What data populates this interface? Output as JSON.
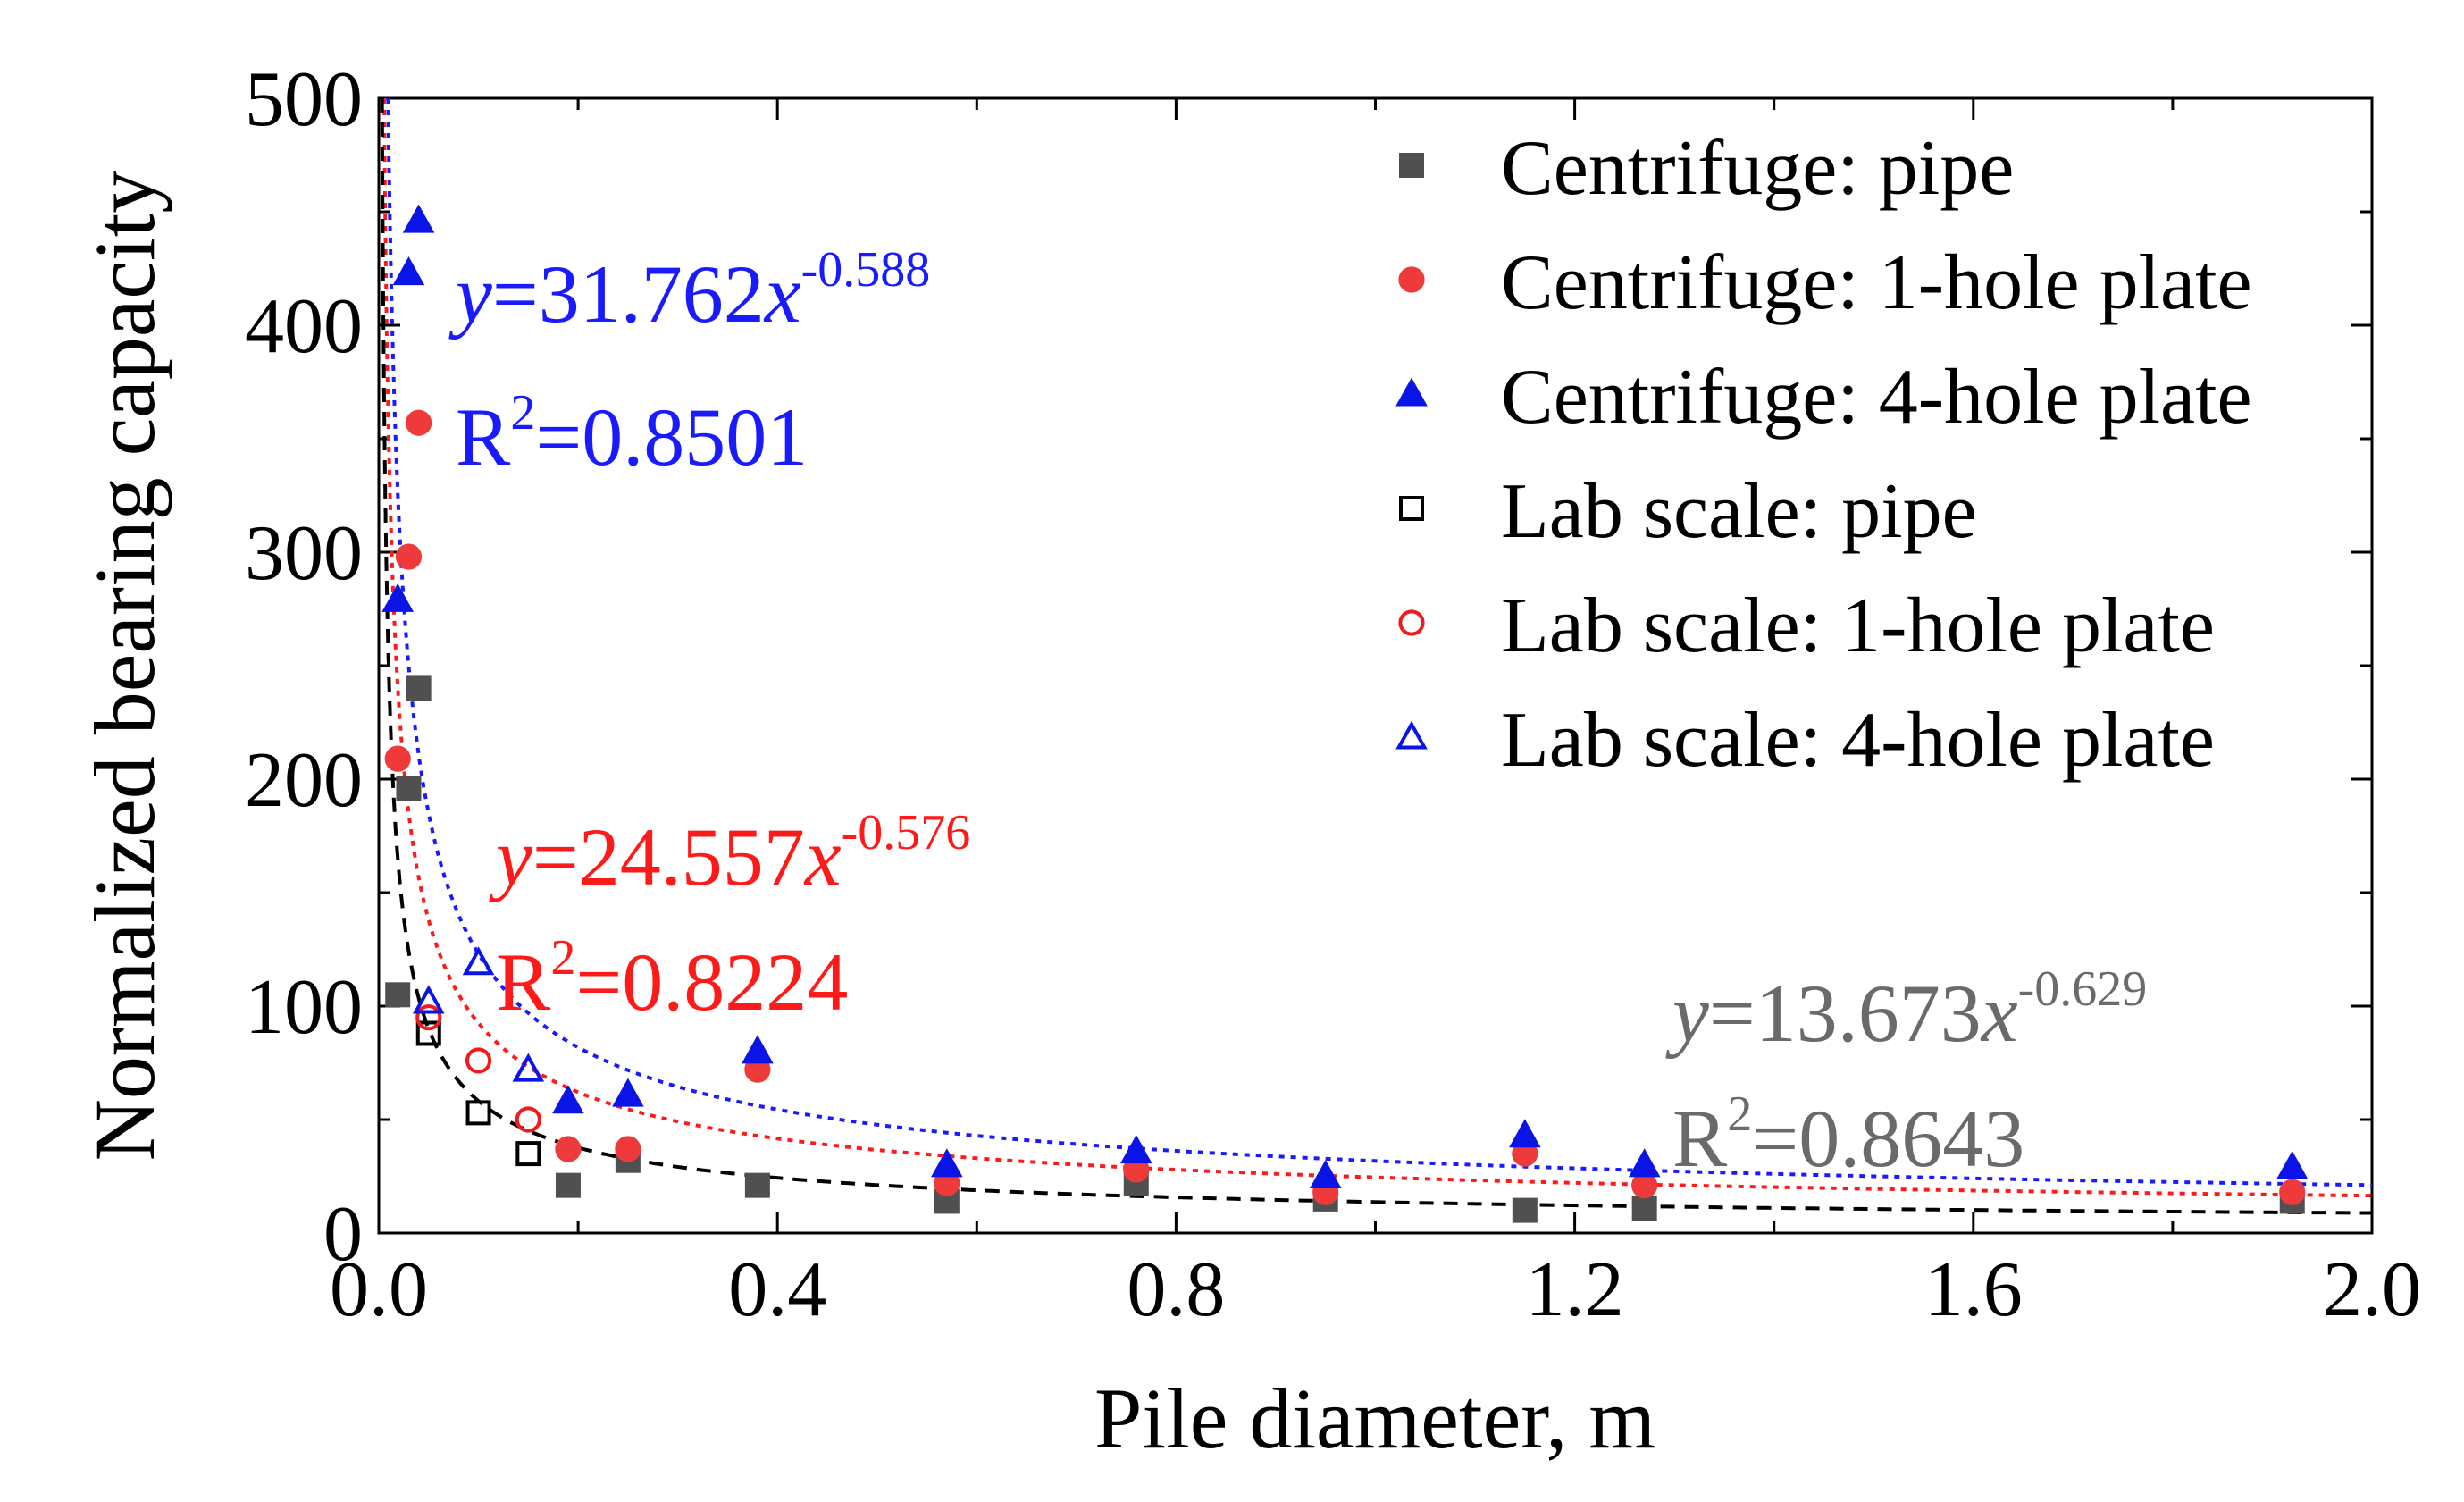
{
  "chart_data": {
    "type": "scatter",
    "xlabel": "Pile diameter, m",
    "ylabel": "Normalized bearing capacity",
    "xlim": [
      0.0,
      2.0
    ],
    "ylim": [
      0,
      500
    ],
    "xticks": [
      0.0,
      0.4,
      0.8,
      1.2,
      1.6,
      2.0
    ],
    "xtick_labels": [
      "0.0",
      "0.4",
      "0.8",
      "1.2",
      "1.6",
      "2.0"
    ],
    "yticks": [
      0,
      100,
      200,
      300,
      400,
      500
    ],
    "ytick_labels": [
      "0",
      "100",
      "200",
      "300",
      "400",
      "500"
    ],
    "grid": false,
    "legend_position": "top-right",
    "series": [
      {
        "name": "Centrifuge: pipe",
        "marker": "square",
        "filled": true,
        "color": "#505050",
        "points": [
          [
            0.019,
            105
          ],
          [
            0.03,
            196
          ],
          [
            0.04,
            240
          ],
          [
            0.19,
            21
          ],
          [
            0.25,
            32
          ],
          [
            0.38,
            21
          ],
          [
            0.57,
            14
          ],
          [
            0.76,
            22
          ],
          [
            0.95,
            15
          ],
          [
            1.15,
            10
          ],
          [
            1.27,
            11
          ],
          [
            1.92,
            14
          ]
        ]
      },
      {
        "name": "Centrifuge: 1-hole plate",
        "marker": "circle",
        "filled": true,
        "color": "#ee3a3a",
        "points": [
          [
            0.019,
            209
          ],
          [
            0.03,
            298
          ],
          [
            0.04,
            357
          ],
          [
            0.19,
            37
          ],
          [
            0.25,
            37
          ],
          [
            0.38,
            72
          ],
          [
            0.57,
            22
          ],
          [
            0.76,
            28
          ],
          [
            0.95,
            18
          ],
          [
            1.15,
            35
          ],
          [
            1.27,
            21
          ],
          [
            1.92,
            18
          ]
        ]
      },
      {
        "name": "Centrifuge: 4-hole plate",
        "marker": "triangle",
        "filled": true,
        "color": "#0a14e6",
        "points": [
          [
            0.019,
            279
          ],
          [
            0.03,
            423
          ],
          [
            0.04,
            446
          ],
          [
            0.19,
            58
          ],
          [
            0.25,
            61
          ],
          [
            0.38,
            80
          ],
          [
            0.57,
            30
          ],
          [
            0.76,
            36
          ],
          [
            0.95,
            25
          ],
          [
            1.15,
            43
          ],
          [
            1.27,
            30
          ],
          [
            1.92,
            29
          ]
        ]
      },
      {
        "name": "Lab scale: pipe",
        "marker": "square",
        "filled": false,
        "color": "#000000",
        "points": [
          [
            0.05,
            88
          ],
          [
            0.1,
            53
          ],
          [
            0.15,
            35
          ]
        ]
      },
      {
        "name": "Lab scale: 1-hole plate",
        "marker": "circle",
        "filled": false,
        "color": "#ee1c1c",
        "points": [
          [
            0.05,
            95
          ],
          [
            0.1,
            76
          ],
          [
            0.15,
            50
          ]
        ]
      },
      {
        "name": "Lab scale: 4-hole plate",
        "marker": "triangle",
        "filled": false,
        "color": "#0a14e6",
        "points": [
          [
            0.05,
            102
          ],
          [
            0.1,
            119
          ],
          [
            0.15,
            72
          ]
        ]
      }
    ],
    "fits": [
      {
        "a": 31.762,
        "b": -0.588,
        "color": "#1a1aff",
        "style": "dotted",
        "eq_coef": "=31.762",
        "eq_exp": "-0.588",
        "r2": "=0.8501"
      },
      {
        "a": 24.557,
        "b": -0.576,
        "color": "#ff1a1a",
        "style": "dotted",
        "eq_coef": "=24.557",
        "eq_exp": "-0.576",
        "r2": "=0.8224"
      },
      {
        "a": 13.673,
        "b": -0.629,
        "color": "#000000",
        "style": "dashed",
        "eq_coef": "=13.673",
        "eq_exp": "-0.629",
        "r2": "=0.8643"
      }
    ],
    "annotation_colors": [
      "#1a1aff",
      "#ff1a1a",
      "#6a6a6a"
    ]
  }
}
